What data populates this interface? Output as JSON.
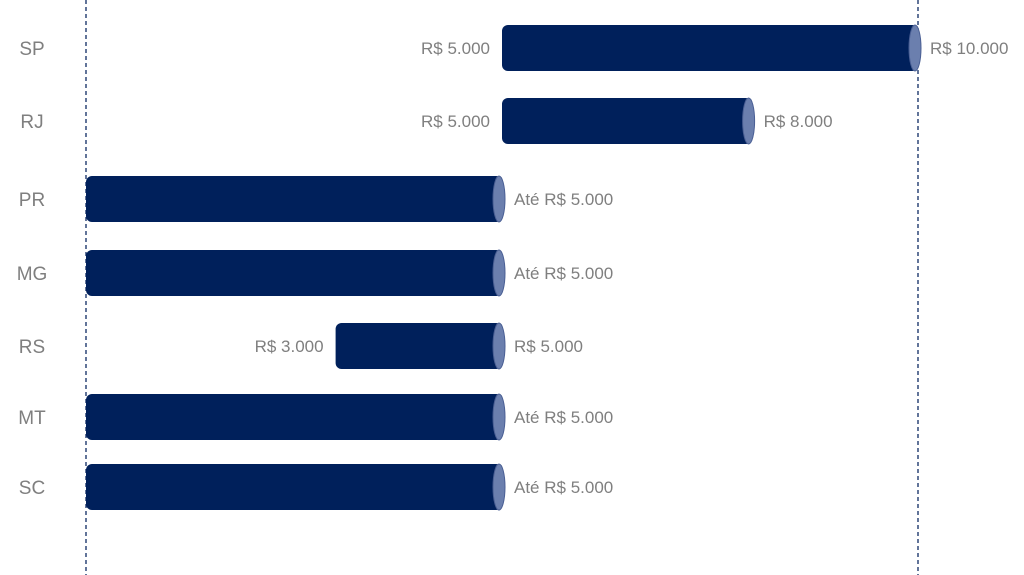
{
  "chart_data": {
    "type": "bar",
    "orientation": "horizontal",
    "style": "floating-range-cylinder",
    "categories": [
      "SP",
      "RJ",
      "PR",
      "MG",
      "RS",
      "MT",
      "SC"
    ],
    "ranges": [
      {
        "category": "SP",
        "start": 5000,
        "end": 10000,
        "start_label": "R$ 5.000",
        "end_label": "R$ 10.000"
      },
      {
        "category": "RJ",
        "start": 5000,
        "end": 8000,
        "start_label": "R$ 5.000",
        "end_label": "R$ 8.000"
      },
      {
        "category": "PR",
        "start": 0,
        "end": 5000,
        "start_label": "",
        "end_label": "Até R$ 5.000"
      },
      {
        "category": "MG",
        "start": 0,
        "end": 5000,
        "start_label": "",
        "end_label": "Até R$ 5.000"
      },
      {
        "category": "RS",
        "start": 3000,
        "end": 5000,
        "start_label": "R$ 3.000",
        "end_label": "R$ 5.000"
      },
      {
        "category": "MT",
        "start": 0,
        "end": 5000,
        "start_label": "",
        "end_label": "Até R$ 5.000"
      },
      {
        "category": "SC",
        "start": 0,
        "end": 5000,
        "start_label": "",
        "end_label": "Até R$ 5.000"
      }
    ],
    "xlim": [
      0,
      10000
    ],
    "reference_lines": [
      0,
      10000
    ],
    "title": "",
    "xlabel": "",
    "ylabel": "",
    "grid": false,
    "legend": "none",
    "colors": {
      "bar": "#00205b",
      "bar_end_cap": "#6b7fae",
      "label_text": "#7f7f7f",
      "guide_line": "#1f3a6e"
    }
  }
}
